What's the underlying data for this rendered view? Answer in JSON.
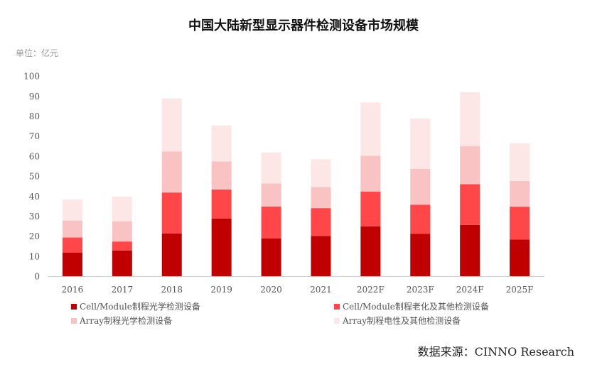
{
  "chart_data": {
    "type": "bar",
    "stacked": true,
    "title": "中国大陆新型显示器件检测设备市场规模",
    "unit_label": "单位：亿元",
    "categories": [
      "2016",
      "2017",
      "2018",
      "2019",
      "2020",
      "2021",
      "2022F",
      "2023F",
      "2024F",
      "2025F"
    ],
    "ylim": [
      0,
      100
    ],
    "yticks": [
      0,
      10,
      20,
      30,
      40,
      50,
      60,
      70,
      80,
      90,
      100
    ],
    "grid": false,
    "legend_position": "bottom",
    "series": [
      {
        "name": "Cell/Module制程光学检测设备",
        "color": "#c00000",
        "values": [
          12,
          13,
          21.5,
          29,
          19,
          20.3,
          25.1,
          21.3,
          25.8,
          18.5
        ]
      },
      {
        "name": "Cell/Module制程老化及其他检测设备",
        "color": "#ff474a",
        "values": [
          7.5,
          4.5,
          20.5,
          14.5,
          16,
          13.9,
          17.3,
          14.6,
          20.4,
          16.4
        ]
      },
      {
        "name": "Array制程光学检测设备",
        "color": "#f9c2c3",
        "values": [
          8.5,
          10,
          20.5,
          14,
          11.5,
          10.5,
          18,
          17.9,
          18.9,
          12.9
        ]
      },
      {
        "name": "Array制程电性及其他检测设备",
        "color": "#fde6e6",
        "values": [
          10.5,
          12.5,
          26.5,
          18,
          15.5,
          13.9,
          26.6,
          25.2,
          27,
          18.8
        ]
      }
    ],
    "source": "数据来源：CINNO Research"
  }
}
